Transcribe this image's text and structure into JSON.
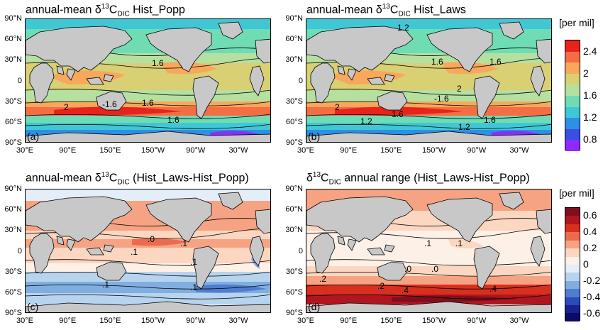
{
  "panels": [
    {
      "id": "a",
      "title_pre": "annual-mean δ",
      "title_sup": "13",
      "title_main": "C",
      "title_sub": "DIC",
      "title_post": " Hist_Popp",
      "label": "(a)",
      "scheme": "abs",
      "contour_labels": [
        "-1.6",
        "1.6",
        "2",
        "1.6",
        "1.6"
      ]
    },
    {
      "id": "b",
      "title_pre": "annual-mean δ",
      "title_sup": "13",
      "title_main": "C",
      "title_sub": "DIC",
      "title_post": " Hist_Laws",
      "label": "(b)",
      "scheme": "abs",
      "contour_labels": [
        "1.2",
        "1.6",
        "1.6",
        "2",
        "-1.6",
        "2",
        "1.2",
        "1.6",
        "1.2",
        "1.6"
      ]
    },
    {
      "id": "c",
      "title_pre": "annual-mean δ",
      "title_sup": "13",
      "title_main": "C",
      "title_sub": "DIC",
      "title_post": " (Hist_Laws-Hist_Popp)",
      "label": "(c)",
      "scheme": "diff",
      "contour_labels": [
        ".0",
        ".1",
        ".1",
        ".1",
        ".1",
        ".1"
      ]
    },
    {
      "id": "d",
      "title_pre": "δ",
      "title_sup": "13",
      "title_main": "C",
      "title_sub": "DIC",
      "title_post": " annual range (Hist_Laws-Hist_Popp)",
      "label": "(d)",
      "scheme": "range",
      "contour_labels": [
        ".1",
        ".1",
        ".0",
        ".0",
        ".2",
        ".2",
        ".4",
        ".4"
      ]
    }
  ],
  "lat_labels": [
    "90°N",
    "60°N",
    "30°N",
    "0",
    "30°S",
    "60°S",
    "90°S"
  ],
  "lon_labels": [
    "30°E",
    "90°E",
    "150°E",
    "150°W",
    "90°W",
    "30°W"
  ],
  "colorbars": [
    {
      "unit": "[per mil]",
      "ticks": [
        "2.4",
        "2",
        "1.6",
        "1.2",
        "0.8"
      ],
      "colors": [
        "#e8231c",
        "#f46d43",
        "#f9a75a",
        "#d9cf73",
        "#b6e0a0",
        "#6fdcb4",
        "#3fc7d6",
        "#2f8ee6",
        "#3a4fe0",
        "#8b2bff"
      ]
    },
    {
      "unit": "[per mil]",
      "ticks": [
        "0.6",
        "0.4",
        "0.2",
        "0",
        "-0.2",
        "-0.4",
        "-0.6"
      ],
      "colors": [
        "#7f0f1e",
        "#b0161f",
        "#d7301f",
        "#ec6b4f",
        "#f6a383",
        "#fbd6c0",
        "#fdf0e6",
        "#e3eef9",
        "#b7d4ef",
        "#80aee0",
        "#4f7dd0",
        "#2a4bb8",
        "#18238f",
        "#0b0a66"
      ]
    }
  ],
  "colors": {
    "land": "#c8c8c8",
    "coast": "#000000"
  }
}
